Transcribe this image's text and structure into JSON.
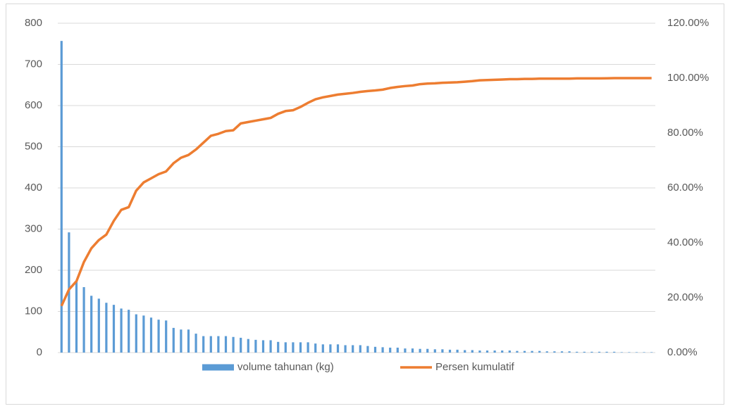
{
  "chart_data": {
    "type": "pareto",
    "categories": [
      null,
      null,
      null,
      null,
      null,
      null,
      null,
      null,
      null,
      null,
      null,
      null,
      null,
      null,
      null,
      null,
      null,
      null,
      null,
      null,
      null,
      null,
      null,
      null,
      null,
      null,
      null,
      null,
      null,
      null,
      null,
      null,
      null,
      null,
      null,
      null,
      null,
      null,
      null,
      null,
      null,
      null,
      null,
      null,
      null,
      null,
      null,
      null,
      null,
      null,
      null,
      null,
      null,
      null,
      null,
      null,
      null,
      null,
      null,
      null,
      null,
      null,
      null,
      null,
      null,
      null,
      null,
      null,
      null,
      null,
      null,
      null,
      null,
      null,
      null,
      null,
      null,
      null,
      null,
      null
    ],
    "series": [
      {
        "name": "volume tahunan (kg)",
        "color": "#5b9bd5",
        "type": "bar",
        "values": [
          757,
          292,
          175,
          159,
          138,
          131,
          121,
          116,
          107,
          104,
          93,
          90,
          85,
          80,
          78,
          60,
          56,
          56,
          46,
          40,
          40,
          40,
          40,
          38,
          36,
          33,
          31,
          30,
          30,
          26,
          25,
          25,
          25,
          25,
          22,
          20,
          20,
          20,
          18,
          18,
          18,
          16,
          14,
          13,
          12,
          12,
          10,
          10,
          9,
          9,
          8,
          8,
          7,
          7,
          6,
          6,
          5,
          5,
          5,
          5,
          5,
          4,
          4,
          4,
          4,
          3,
          3,
          3,
          3,
          2,
          2,
          2,
          2,
          2,
          2,
          1,
          1,
          1,
          1,
          1
        ]
      },
      {
        "name": "Persen kumulatif",
        "color": "#ed7d31",
        "type": "line",
        "axis": "y2",
        "values": [
          17,
          23,
          26,
          33,
          38,
          41,
          43,
          48,
          52,
          53,
          59,
          62,
          63.5,
          65,
          66,
          69,
          71,
          72,
          74,
          76.5,
          79,
          79.7,
          80.7,
          81,
          83.5,
          84,
          84.5,
          85,
          85.5,
          87,
          88,
          88.3,
          89.5,
          91,
          92.3,
          93,
          93.5,
          94,
          94.3,
          94.6,
          95,
          95.3,
          95.5,
          95.8,
          96.4,
          96.8,
          97.1,
          97.3,
          97.8,
          98,
          98.1,
          98.3,
          98.4,
          98.5,
          98.7,
          98.9,
          99.2,
          99.3,
          99.4,
          99.5,
          99.6,
          99.6,
          99.7,
          99.7,
          99.8,
          99.8,
          99.8,
          99.8,
          99.8,
          99.9,
          99.9,
          99.9,
          99.9,
          99.95,
          100,
          100,
          100,
          100,
          100,
          100
        ]
      }
    ],
    "ylim": [
      0,
      800
    ],
    "yticks": [
      0,
      100,
      200,
      300,
      400,
      500,
      600,
      700,
      800
    ],
    "y2lim": [
      0,
      120
    ],
    "y2ticks": [
      {
        "value": 0,
        "label": "0.00%"
      },
      {
        "value": 20,
        "label": "20.00%"
      },
      {
        "value": 40,
        "label": "40.00%"
      },
      {
        "value": 60,
        "label": "60.00%"
      },
      {
        "value": 80,
        "label": "80.00%"
      },
      {
        "value": 100,
        "label": "100.00%"
      },
      {
        "value": 120,
        "label": "120.00%"
      }
    ],
    "grid": true,
    "legend": "bottom"
  }
}
